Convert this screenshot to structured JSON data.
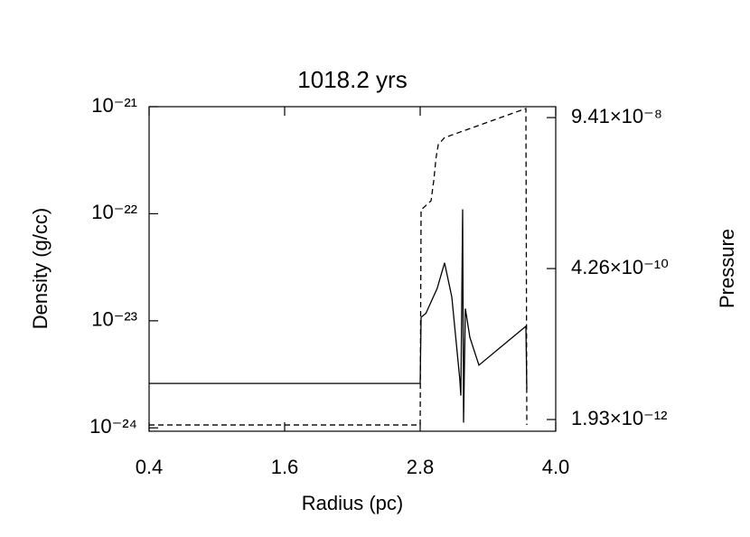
{
  "chart_data": {
    "type": "line",
    "title": "1018.2 yrs",
    "xlabel": "Radius (pc)",
    "ylabel": "Density (g/cc)",
    "y2label": "Pressure",
    "xlim": [
      0.4,
      4.0
    ],
    "xticks": [
      0.4,
      1.6,
      2.8,
      {
        "value": 4.0,
        "label": "4.0"
      }
    ],
    "ylim": [
      9.3e-25,
      1e-21
    ],
    "ylog": true,
    "yticks": [
      {
        "value": 1e-24,
        "label": "10⁻²⁴"
      },
      {
        "value": 1e-23,
        "label": "10⁻²³"
      },
      {
        "value": 1e-22,
        "label": "10⁻²²"
      },
      {
        "value": 1e-21,
        "label": "10⁻²¹"
      }
    ],
    "y2lim": [
      1.27e-12,
      1.39e-07
    ],
    "y2log": true,
    "y2ticks": [
      {
        "value": 1.93e-12,
        "label": "1.93×10⁻¹²"
      },
      {
        "value": 4.26e-10,
        "label": "4.26×10⁻¹⁰"
      },
      {
        "value": 9.41e-08,
        "label": "9.41×10⁻⁸"
      }
    ],
    "series": [
      {
        "name": "Density",
        "color": "#000000",
        "line_style": "solid",
        "x": [
          0.4,
          2.8,
          2.808,
          2.85,
          2.95,
          3.016,
          3.08,
          3.15,
          3.16,
          3.176,
          3.184,
          3.2,
          3.24,
          3.32,
          3.736,
          3.744
        ],
        "values": [
          2.6e-24,
          2.6e-24,
          1.08e-23,
          1.17e-23,
          2e-23,
          3.48e-23,
          1.67e-23,
          2.9e-24,
          2e-24,
          1.1e-22,
          1.12e-24,
          1.3e-23,
          7e-24,
          3.85e-24,
          8.9e-24,
          2.3e-24
        ]
      },
      {
        "name": "Pressure",
        "color": "#000000",
        "line_style": "dashed",
        "axis": "y2",
        "x": [
          0.4,
          2.8,
          2.808,
          2.896,
          2.92,
          2.94,
          2.96,
          3.016,
          3.736,
          3.744
        ],
        "values": [
          1.59e-12,
          1.59e-12,
          3.47e-09,
          4.8e-09,
          9.8e-09,
          2.2e-08,
          3.57e-08,
          4.6e-08,
          1.3e-07,
          1.59e-12
        ]
      }
    ]
  }
}
